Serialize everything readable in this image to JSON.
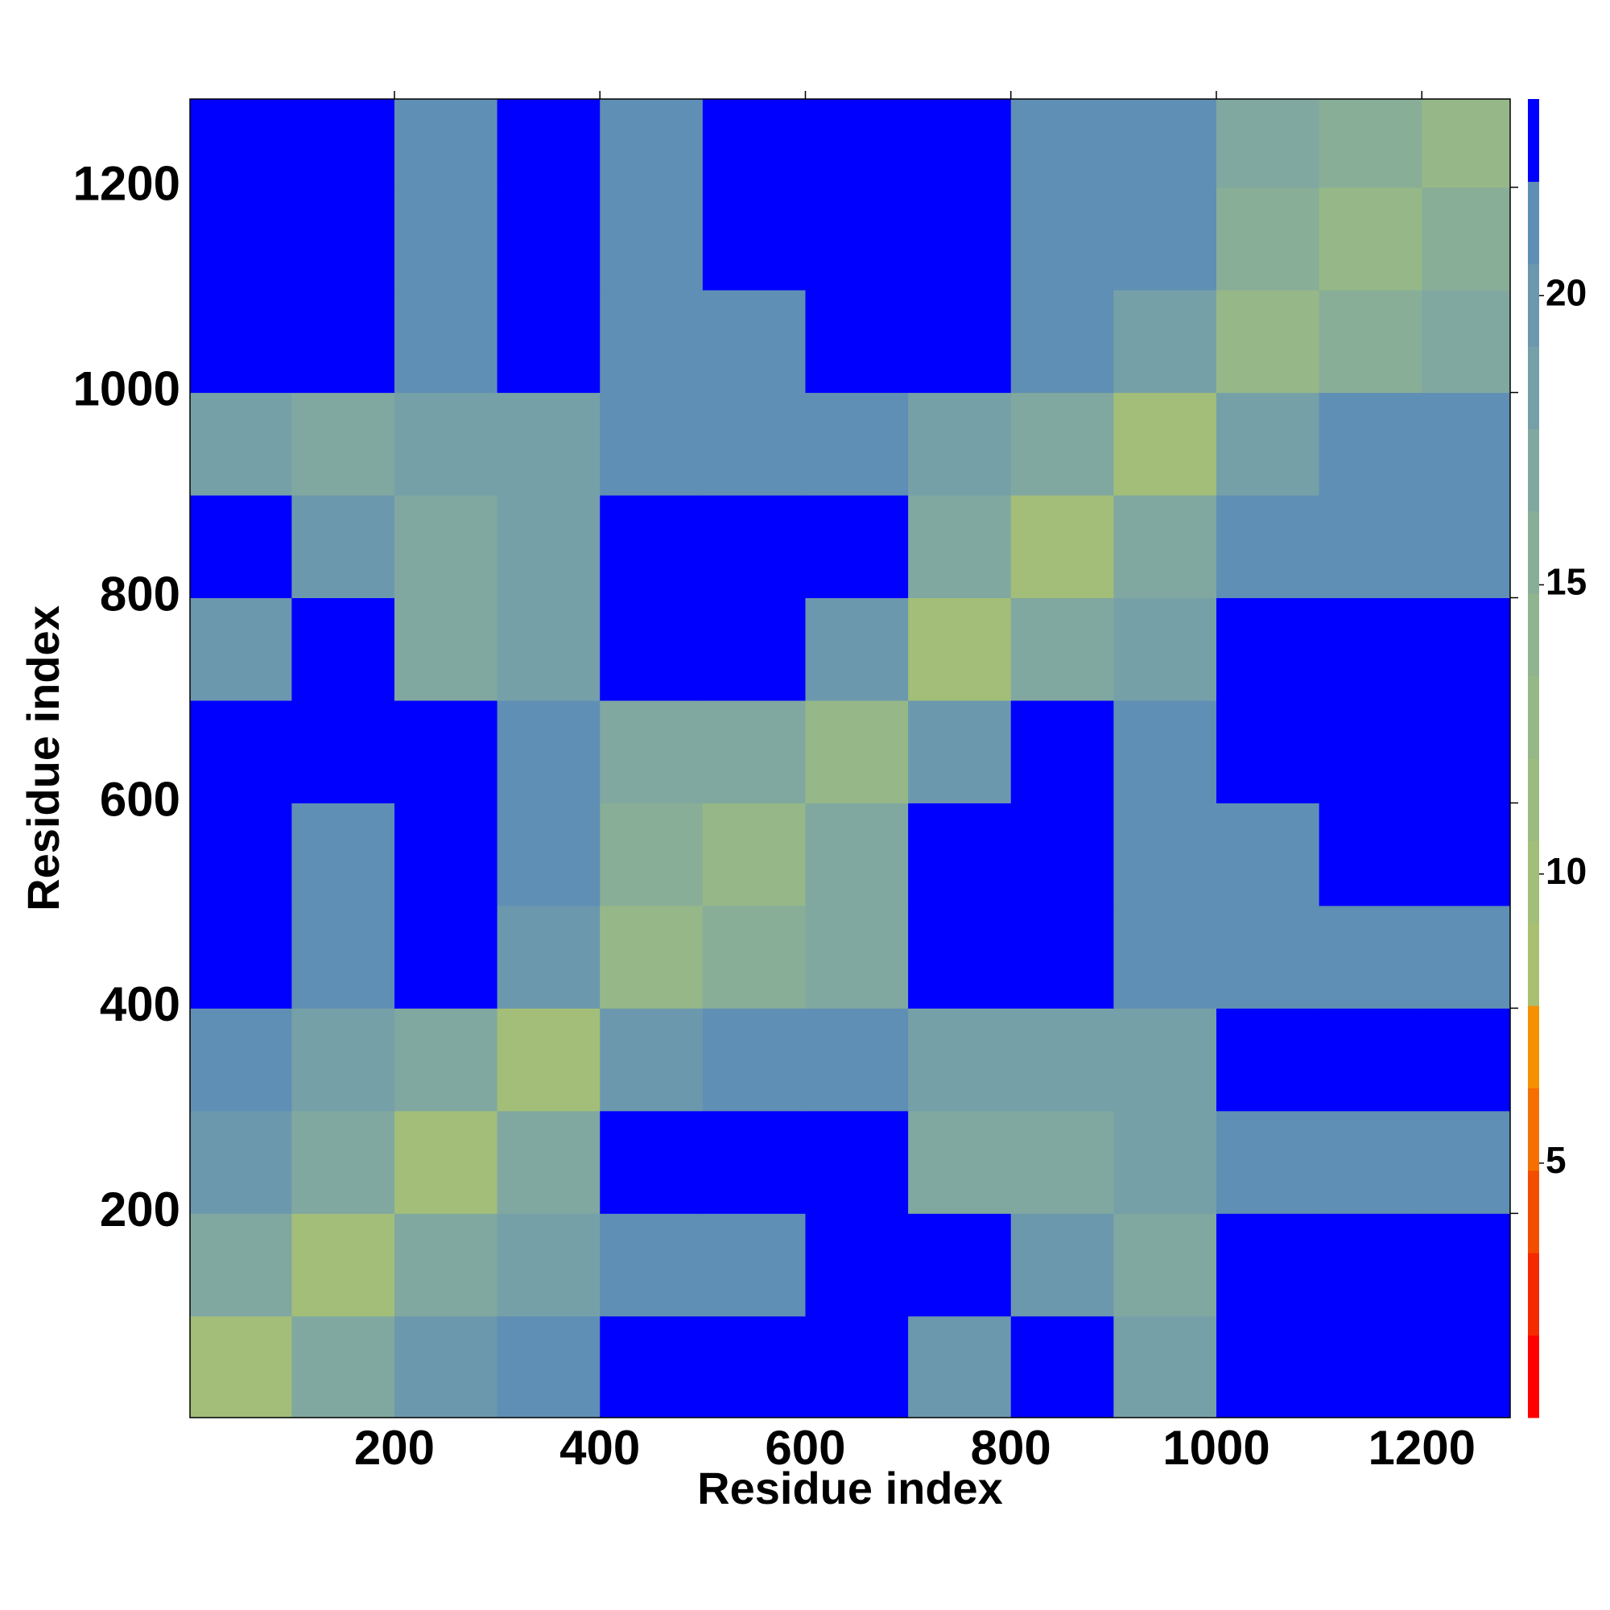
{
  "chart_data": {
    "type": "heatmap",
    "x_label": "Residue index",
    "y_label": "Residue index",
    "xbins": [
      0,
      100,
      200,
      300,
      400,
      500,
      600,
      700,
      800,
      900,
      1000,
      1100,
      1200,
      1300
    ],
    "ybins": [
      0,
      100,
      200,
      300,
      400,
      500,
      600,
      700,
      800,
      900,
      1000,
      1100,
      1200,
      1300
    ],
    "values": [
      [
        10,
        17,
        20,
        21,
        23,
        23,
        23,
        20,
        23,
        18,
        23,
        23,
        23
      ],
      [
        17,
        10,
        17,
        19,
        21,
        21,
        23,
        23,
        20,
        17,
        23,
        23,
        23
      ],
      [
        20,
        17,
        10,
        17,
        23,
        23,
        23,
        17,
        17,
        18,
        21,
        21,
        21
      ],
      [
        21,
        19,
        17,
        10,
        20,
        21,
        21,
        18,
        18,
        18,
        23,
        23,
        23
      ],
      [
        23,
        21,
        23,
        20,
        12,
        16,
        17,
        23,
        23,
        21,
        21,
        21,
        21
      ],
      [
        23,
        21,
        23,
        21,
        16,
        12,
        17,
        23,
        23,
        21,
        21,
        23,
        23
      ],
      [
        23,
        23,
        23,
        21,
        17,
        17,
        12,
        20,
        23,
        21,
        23,
        23,
        23
      ],
      [
        20,
        23,
        17,
        18,
        23,
        23,
        20,
        10,
        17,
        18,
        23,
        23,
        23
      ],
      [
        23,
        20,
        17,
        18,
        23,
        23,
        23,
        17,
        10,
        17,
        21,
        21,
        21
      ],
      [
        18,
        17,
        18,
        18,
        21,
        21,
        21,
        18,
        17,
        10,
        19,
        21,
        21
      ],
      [
        23,
        23,
        21,
        23,
        21,
        21,
        23,
        23,
        21,
        19,
        12,
        16,
        17
      ],
      [
        23,
        23,
        21,
        23,
        21,
        23,
        23,
        23,
        21,
        21,
        16,
        12,
        16
      ],
      [
        23,
        23,
        21,
        23,
        21,
        23,
        23,
        23,
        21,
        21,
        17,
        16,
        12
      ]
    ],
    "xlim": [
      1,
      1286
    ],
    "ylim": [
      1,
      1286
    ],
    "xticks": [
      200,
      400,
      600,
      800,
      1000,
      1200
    ],
    "yticks": [
      200,
      400,
      600,
      800,
      1000,
      1200
    ],
    "zlim": [
      0.6,
      23.4
    ],
    "zticks": [
      5,
      10,
      15,
      20
    ],
    "colorscale": [
      "#ff0000",
      "#f52a00",
      "#f24d00",
      "#f57000",
      "#f59000",
      "#a8c070",
      "#a2be78",
      "#9cbb80",
      "#96b888",
      "#90b490",
      "#88ae98",
      "#80a8a0",
      "#76a0a8",
      "#6c98ae",
      "#5f8fb4",
      "#0000ff"
    ]
  }
}
